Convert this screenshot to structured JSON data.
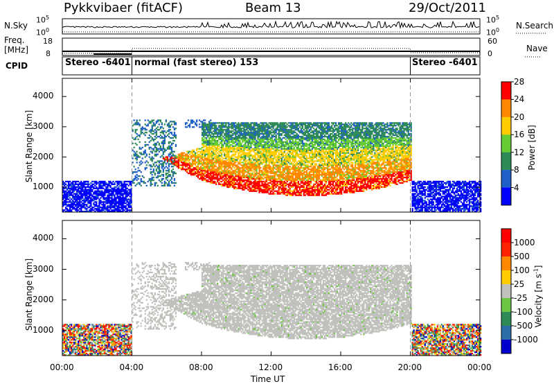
{
  "header": {
    "radar": "Pykkvibaer (fitACF)",
    "beam": "Beam 13",
    "date": "29/Oct/2011"
  },
  "small_panels": {
    "nsky_label": "N.Sky",
    "nsky_ticks": [
      "10^5",
      "10^0"
    ],
    "freq_label_1": "Freq.",
    "freq_label_2": "[MHz]",
    "freq_ticks": [
      "18",
      "8"
    ],
    "cpid_label": "CPID",
    "nsearch_label": "N.Search",
    "nsearch_ticks": [
      "10^5",
      "10^0"
    ],
    "nave_label": "Nave",
    "nave_ticks": [
      "60",
      "0"
    ]
  },
  "modes": [
    {
      "label": "Stereo -6401",
      "start_h": 0,
      "end_h": 4
    },
    {
      "label": "normal (fast stereo) 153",
      "start_h": 4,
      "end_h": 20
    },
    {
      "label": "Stereo -6401",
      "start_h": 20,
      "end_h": 24
    }
  ],
  "chart_data": [
    {
      "type": "heatmap",
      "title": "Power",
      "xlabel": "Time UT",
      "ylabel": "Slant Range [km]",
      "xlim_h": [
        0,
        24
      ],
      "ylim": [
        180,
        4600
      ],
      "x_tick_labels": [
        "00:00",
        "04:00",
        "08:00",
        "12:00",
        "16:00",
        "20:00",
        "00:00"
      ],
      "x_ticks_h": [
        0,
        4,
        8,
        12,
        16,
        20,
        24
      ],
      "y_ticks": [
        1000,
        2000,
        3000,
        4000
      ],
      "colorbar": {
        "label": "Power [dB]",
        "tick_labels": [
          "4",
          "8",
          "12",
          "16",
          "20",
          "24",
          "28"
        ],
        "colors": [
          "#0000ff",
          "#1f5fc8",
          "#2e8b57",
          "#66cc33",
          "#ffcc00",
          "#ff8800",
          "#ff0000"
        ]
      },
      "regions": [
        {
          "t0": 0,
          "t1": 4,
          "r0": 200,
          "r1": 1180,
          "level": 4
        },
        {
          "t0": 4,
          "t1": 6.5,
          "r0": 1100,
          "r1": 3200,
          "level": 8
        },
        {
          "t0": 8,
          "t1": 20,
          "r0": 600,
          "r1": 1400,
          "level": 28
        },
        {
          "t0": 8,
          "t1": 20,
          "r0": 1400,
          "r1": 2700,
          "level": 20
        },
        {
          "t0": 8,
          "t1": 20,
          "r0": 2700,
          "r1": 3200,
          "level": 12
        },
        {
          "t0": 20,
          "t1": 24,
          "r0": 200,
          "r1": 1180,
          "level": 4
        }
      ]
    },
    {
      "type": "heatmap",
      "title": "Velocity",
      "xlabel": "Time UT",
      "ylabel": "Slant Range [km]",
      "xlim_h": [
        0,
        24
      ],
      "ylim": [
        180,
        4600
      ],
      "x_tick_labels": [
        "00:00",
        "04:00",
        "08:00",
        "12:00",
        "16:00",
        "20:00",
        "00:00"
      ],
      "x_ticks_h": [
        0,
        4,
        8,
        12,
        16,
        20,
        24
      ],
      "y_ticks": [
        1000,
        2000,
        3000,
        4000
      ],
      "colorbar": {
        "label": "Velocity [m s^-1]",
        "tick_labels": [
          "1000",
          "500",
          "100",
          "25",
          "-25",
          "-100",
          "-500",
          "-1000"
        ],
        "colors": [
          "#0000cc",
          "#2c6ea8",
          "#2e8b57",
          "#6cc644",
          "#c0c0bc",
          "#ffcc00",
          "#ff8800",
          "#ff2200",
          "#ff0000"
        ]
      },
      "regions": [
        {
          "t0": 0,
          "t1": 4,
          "r0": 200,
          "r1": 1180,
          "level": -100
        },
        {
          "t0": 4,
          "t1": 20,
          "r0": 600,
          "r1": 2900,
          "level": 0
        },
        {
          "t0": 20,
          "t1": 24,
          "r0": 200,
          "r1": 1180,
          "level": -500
        }
      ]
    }
  ]
}
